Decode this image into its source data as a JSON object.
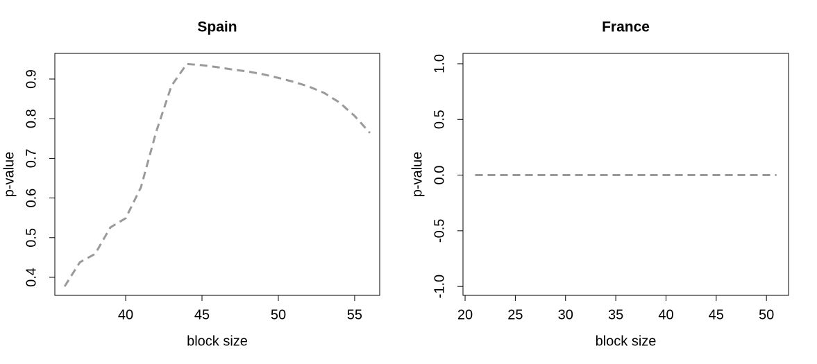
{
  "chart_data": [
    {
      "type": "line",
      "title": "Spain",
      "xlabel": "block size",
      "ylabel": "p-value",
      "x": [
        36,
        37,
        38,
        39,
        40,
        41,
        42,
        43,
        44,
        45,
        46,
        47,
        48,
        49,
        50,
        51,
        52,
        53,
        54,
        55,
        56
      ],
      "series": [
        {
          "color": "#9a9a9a",
          "values": [
            0.377,
            0.438,
            0.459,
            0.526,
            0.549,
            0.627,
            0.767,
            0.883,
            0.938,
            0.935,
            0.93,
            0.924,
            0.919,
            0.912,
            0.903,
            0.893,
            0.881,
            0.865,
            0.841,
            0.807,
            0.764
          ]
        }
      ],
      "xlim": [
        35.36,
        56.64
      ],
      "xticks": [
        40,
        45,
        50,
        55
      ],
      "ylim": [
        0.3545,
        0.9647
      ],
      "yticks": [
        0.4,
        0.5,
        0.6,
        0.7,
        0.8,
        0.9
      ]
    },
    {
      "type": "line",
      "title": "France",
      "xlabel": "block size",
      "ylabel": "p-value",
      "x": [
        21,
        22,
        23,
        24,
        25,
        26,
        27,
        28,
        29,
        30,
        31,
        32,
        33,
        34,
        35,
        36,
        37,
        38,
        39,
        40,
        41,
        42,
        43,
        44,
        45,
        46,
        47,
        48,
        49,
        50,
        51
      ],
      "series": [
        {
          "color": "#9a9a9a",
          "values": [
            0,
            0,
            0,
            0,
            0,
            0,
            0,
            0,
            0,
            0,
            0,
            0,
            0,
            0,
            0,
            0,
            0,
            0,
            0,
            0,
            0,
            0,
            0,
            0,
            0,
            0,
            0,
            0,
            0,
            0,
            0
          ]
        }
      ],
      "xlim": [
        19.79,
        52.2
      ],
      "xticks": [
        20,
        25,
        30,
        35,
        40,
        45,
        50
      ],
      "ylim": [
        -1.08,
        1.093
      ],
      "yticks": [
        {
          "value": -1,
          "label": "-1.0"
        },
        -0.5,
        {
          "value": 0,
          "label": "0.0"
        },
        0.5,
        {
          "value": 1,
          "label": "1.0"
        }
      ]
    }
  ]
}
